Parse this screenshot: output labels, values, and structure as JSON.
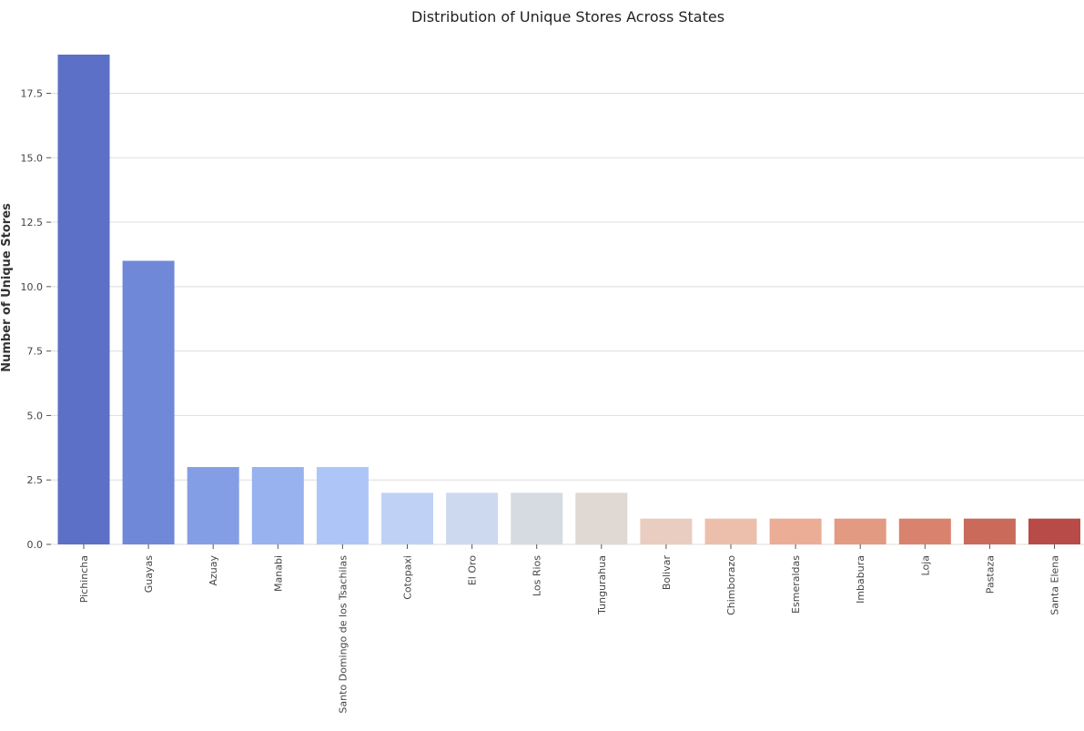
{
  "chart_data": {
    "type": "bar",
    "title": "Distribution of Unique Stores Across States",
    "xlabel": "",
    "ylabel": "Number of Unique Stores",
    "ylim": [
      0,
      19
    ],
    "yticks": [
      "0.0",
      "2.5",
      "5.0",
      "7.5",
      "10.0",
      "12.5",
      "15.0",
      "17.5"
    ],
    "grid": true,
    "categories": [
      "Pichincha",
      "Guayas",
      "Azuay",
      "Manabi",
      "Santo Domingo de los Tsachilas",
      "Cotopaxi",
      "El Oro",
      "Los Rios",
      "Tungurahua",
      "Bolivar",
      "Chimborazo",
      "Esmeraldas",
      "Imbabura",
      "Loja",
      "Pastaza",
      "Santa Elena"
    ],
    "values": [
      19,
      11,
      3,
      3,
      3,
      2,
      2,
      2,
      2,
      1,
      1,
      1,
      1,
      1,
      1,
      1
    ],
    "colors": [
      "#5b70c6",
      "#6f88d8",
      "#849ee6",
      "#98b2f0",
      "#adc5f7",
      "#bfd2f5",
      "#cdd9ef",
      "#d6dbe2",
      "#e0d8d3",
      "#e9cdc0",
      "#ecbfad",
      "#ebad96",
      "#e39a82",
      "#d9826d",
      "#c96a5b",
      "#b84a47"
    ]
  }
}
